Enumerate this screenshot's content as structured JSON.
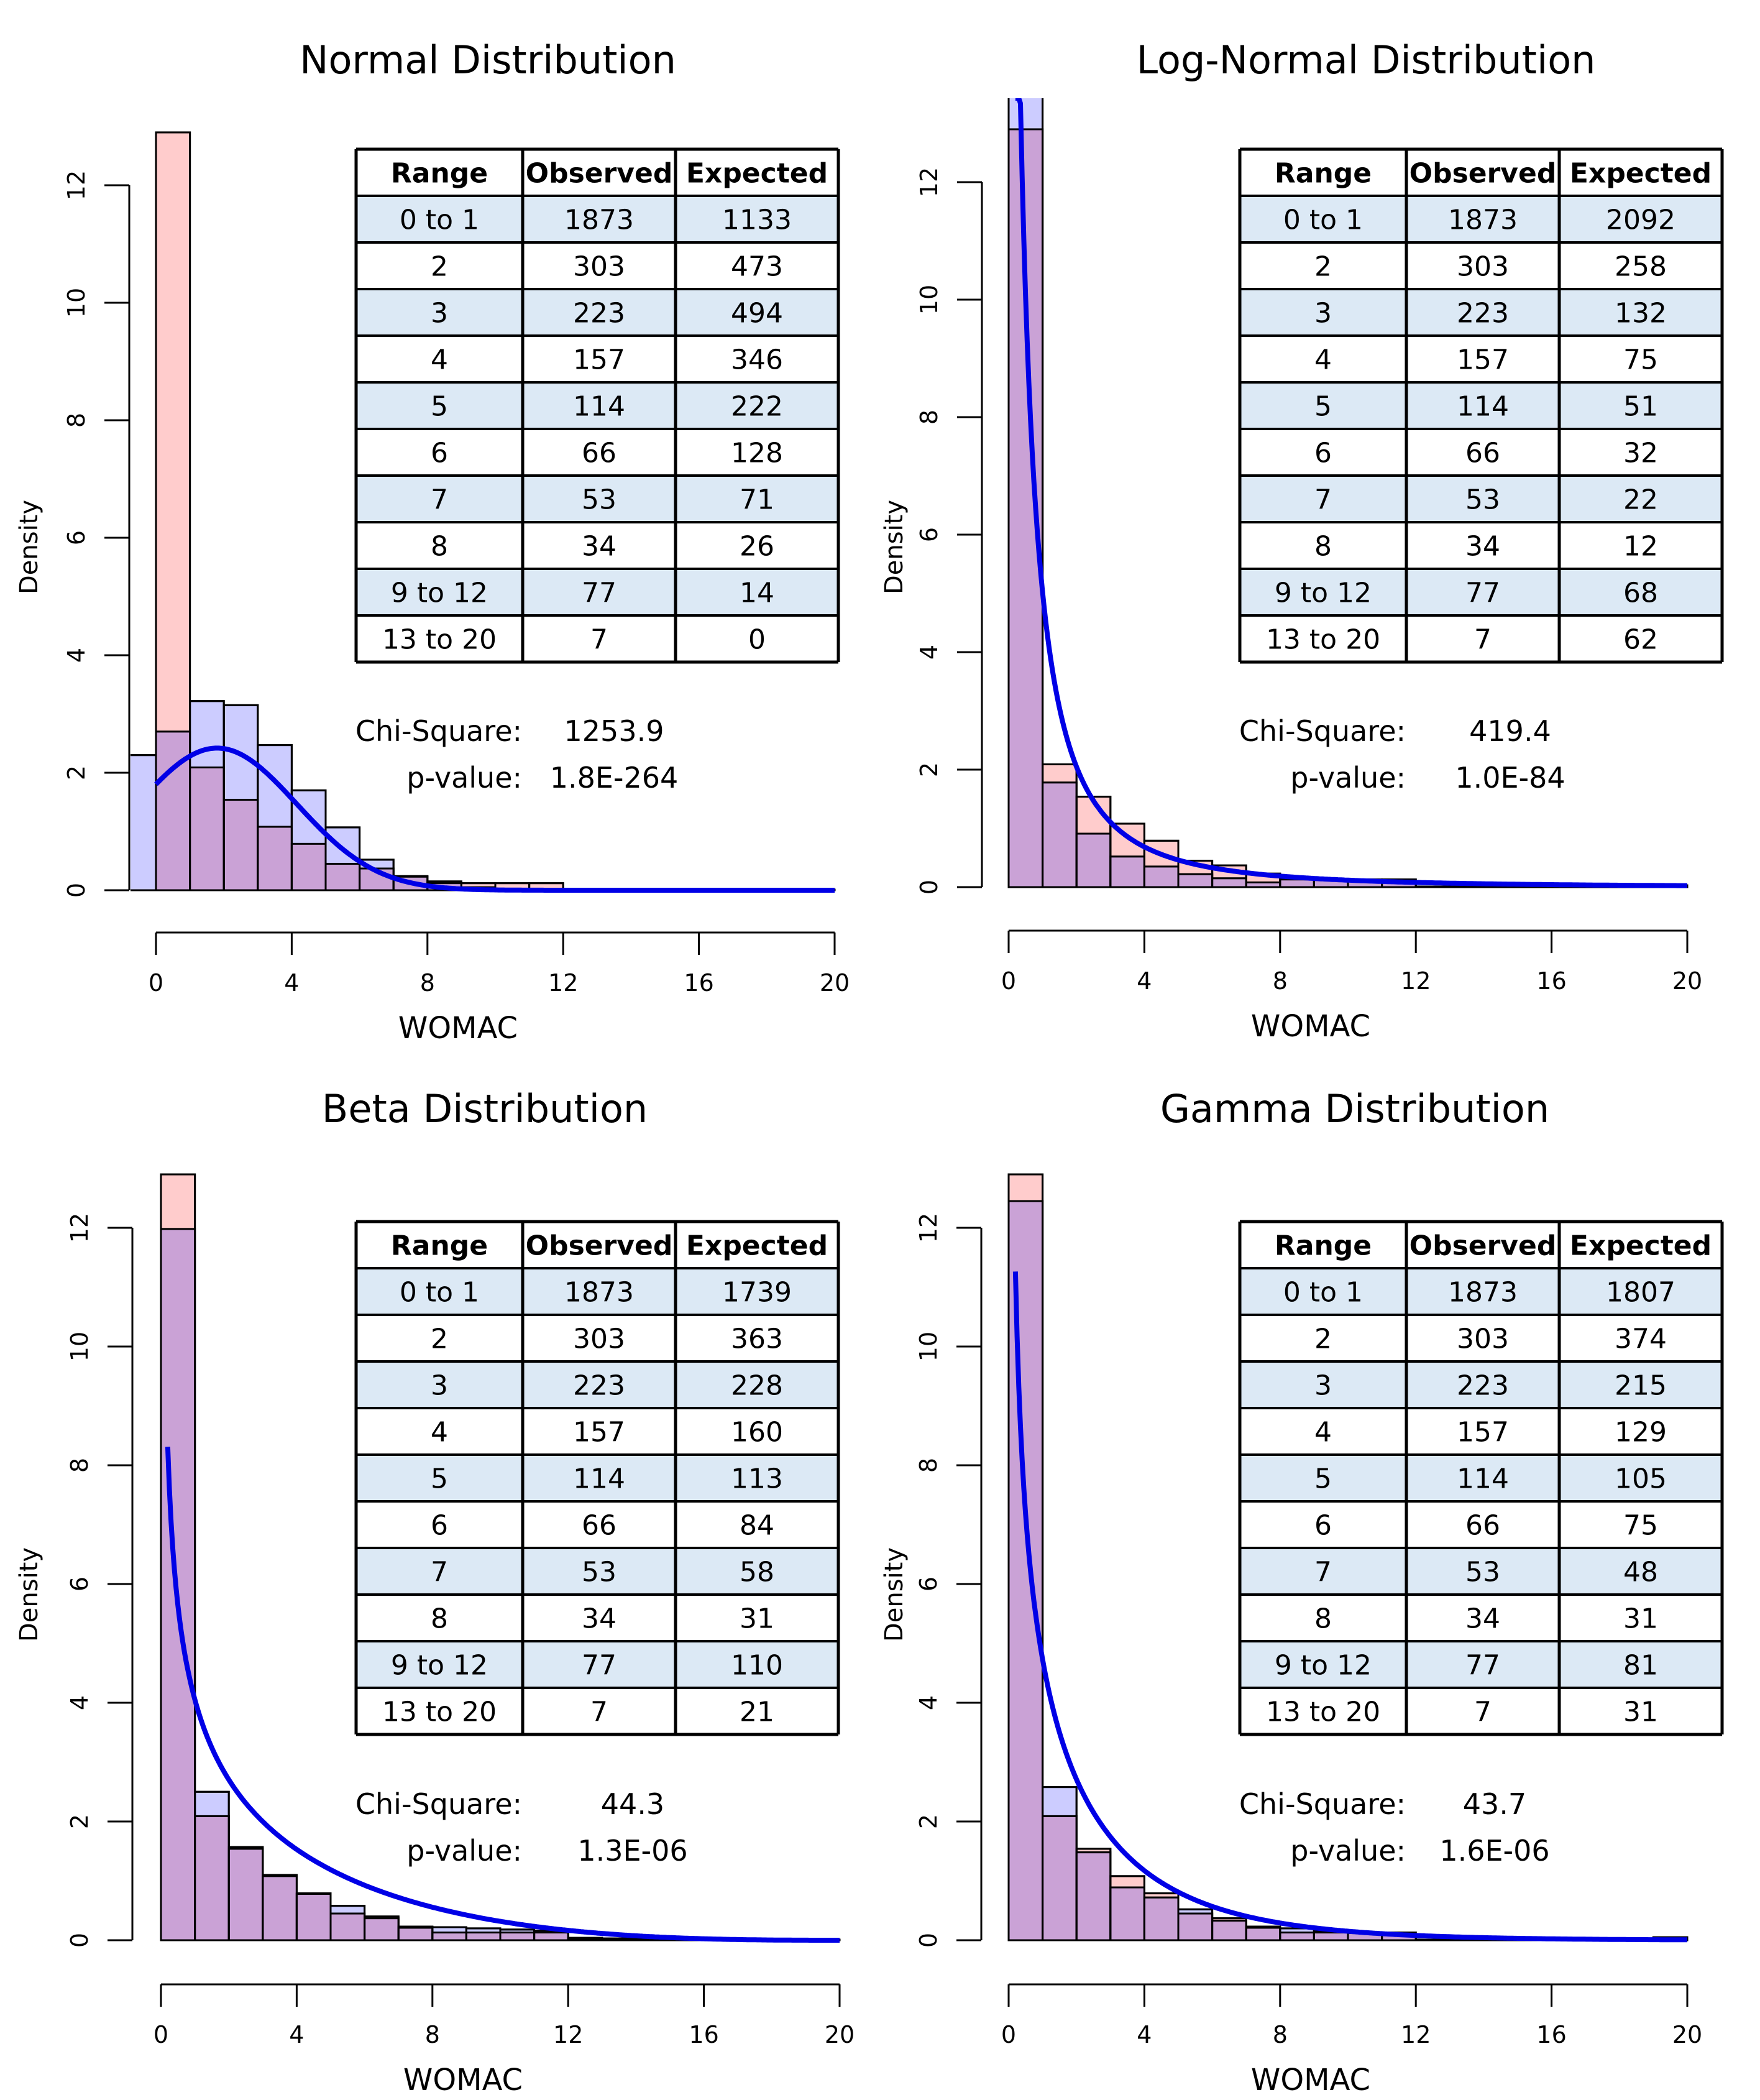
{
  "chart_data": [
    {
      "type": "bar",
      "panel": "normal",
      "title": "Normal Distribution",
      "xlabel": "WOMAC",
      "ylabel": "Density",
      "xlim": [
        0,
        20
      ],
      "ylim": [
        0,
        13
      ],
      "xticks": [
        "0",
        "4",
        "8",
        "12",
        "16",
        "20"
      ],
      "yticks": [
        "0",
        "2",
        "4",
        "6",
        "8",
        "10",
        "12"
      ],
      "legend": "none",
      "series": [
        {
          "name": "Observed",
          "bin_start": 0,
          "bin_width": 1,
          "values": [
            12.9,
            2.09,
            1.54,
            1.08,
            0.79,
            0.45,
            0.37,
            0.23,
            0.15,
            0.12,
            0.12,
            0.12,
            0.01,
            0.01,
            0.01,
            0.01,
            0.01,
            0.01,
            0.01,
            0.01
          ]
        },
        {
          "name": "Expected",
          "bin_start": -1,
          "bin_width": 1,
          "values": [
            2.3,
            2.7,
            3.22,
            3.15,
            2.47,
            1.7,
            1.07,
            0.52,
            0.24,
            0.12,
            0.05,
            0.02,
            0.0
          ]
        }
      ],
      "curve": {
        "name": "Fitted density",
        "dist": "normal",
        "mean": 1.8,
        "sd": 2.35,
        "scale": 19.0
      },
      "table": {
        "headers": [
          "Range",
          "Observed",
          "Expected"
        ],
        "rows": [
          [
            "0  to 1",
            "1873",
            "1133"
          ],
          [
            "2",
            "303",
            "473"
          ],
          [
            "3",
            "223",
            "494"
          ],
          [
            "4",
            "157",
            "346"
          ],
          [
            "5",
            "114",
            "222"
          ],
          [
            "6",
            "66",
            "128"
          ],
          [
            "7",
            "53",
            "71"
          ],
          [
            "8",
            "34",
            "26"
          ],
          [
            "9 to 12",
            "77",
            "14"
          ],
          [
            "13 to 20",
            "7",
            "0"
          ]
        ]
      },
      "stats": {
        "chi_label": "Chi-Square:",
        "chi_value": "1253.9",
        "p_label": "p-value:",
        "p_value": "1.8E-264"
      }
    },
    {
      "type": "bar",
      "panel": "lognormal",
      "title": "Log-Normal Distribution",
      "xlabel": "WOMAC",
      "ylabel": "Density",
      "xlim": [
        0,
        20
      ],
      "ylim": [
        0,
        13.5
      ],
      "xticks": [
        "0",
        "4",
        "8",
        "12",
        "16",
        "20"
      ],
      "yticks": [
        "0",
        "2",
        "4",
        "6",
        "8",
        "10",
        "12"
      ],
      "legend": "none",
      "series": [
        {
          "name": "Observed",
          "bin_start": 0,
          "bin_width": 1,
          "values": [
            12.9,
            2.09,
            1.54,
            1.08,
            0.79,
            0.45,
            0.37,
            0.23,
            0.13,
            0.13,
            0.13,
            0.13,
            0.01,
            0.01,
            0.01,
            0.01,
            0.01,
            0.01,
            0.01,
            0.01
          ]
        },
        {
          "name": "Expected",
          "bin_start": 0,
          "bin_width": 1,
          "values": [
            14.4,
            1.78,
            0.91,
            0.52,
            0.35,
            0.22,
            0.15,
            0.08,
            0.14,
            0.12,
            0.1,
            0.09,
            0.07,
            0.06,
            0.05,
            0.05,
            0.04,
            0.04,
            0.03,
            0.03
          ]
        }
      ],
      "curve": {
        "name": "Fitted density",
        "dist": "lognormal",
        "meanlog": -0.55,
        "sdlog": 1.55,
        "scale": 20.0
      },
      "table": {
        "headers": [
          "Range",
          "Observed",
          "Expected"
        ],
        "rows": [
          [
            "0  to 1",
            "1873",
            "2092"
          ],
          [
            "2",
            "303",
            "258"
          ],
          [
            "3",
            "223",
            "132"
          ],
          [
            "4",
            "157",
            "75"
          ],
          [
            "5",
            "114",
            "51"
          ],
          [
            "6",
            "66",
            "32"
          ],
          [
            "7",
            "53",
            "22"
          ],
          [
            "8",
            "34",
            "12"
          ],
          [
            "9 to 12",
            "77",
            "68"
          ],
          [
            "13 to 20",
            "7",
            "62"
          ]
        ]
      },
      "stats": {
        "chi_label": "Chi-Square:",
        "chi_value": "419.4",
        "p_label": "p-value:",
        "p_value": "1.0E-84"
      }
    },
    {
      "type": "bar",
      "panel": "beta",
      "title": "Beta Distribution",
      "xlabel": "WOMAC",
      "ylabel": "Density",
      "xlim": [
        0,
        20
      ],
      "ylim": [
        0,
        13.5
      ],
      "xticks": [
        "0",
        "4",
        "8",
        "12",
        "16",
        "20"
      ],
      "yticks": [
        "0",
        "2",
        "4",
        "6",
        "8",
        "10",
        "12"
      ],
      "legend": "none",
      "series": [
        {
          "name": "Observed",
          "bin_start": 0,
          "bin_width": 1,
          "values": [
            12.9,
            2.09,
            1.54,
            1.08,
            0.79,
            0.45,
            0.37,
            0.23,
            0.13,
            0.13,
            0.13,
            0.13,
            0.01,
            0.01,
            0.01,
            0.01,
            0.01,
            0.01,
            0.01,
            0.01
          ]
        },
        {
          "name": "Expected",
          "bin_start": 0,
          "bin_width": 1,
          "values": [
            11.98,
            2.5,
            1.57,
            1.1,
            0.78,
            0.58,
            0.4,
            0.21,
            0.22,
            0.2,
            0.18,
            0.16,
            0.04,
            0.03,
            0.02,
            0.02,
            0.01,
            0.01,
            0.01,
            0.0
          ]
        }
      ],
      "curve": {
        "name": "Fitted density",
        "dist": "beta",
        "alpha": 0.62,
        "beta": 3.6,
        "scale": 20.0
      },
      "table": {
        "headers": [
          "Range",
          "Observed",
          "Expected"
        ],
        "rows": [
          [
            "0  to 1",
            "1873",
            "1739"
          ],
          [
            "2",
            "303",
            "363"
          ],
          [
            "3",
            "223",
            "228"
          ],
          [
            "4",
            "157",
            "160"
          ],
          [
            "5",
            "114",
            "113"
          ],
          [
            "6",
            "66",
            "84"
          ],
          [
            "7",
            "53",
            "58"
          ],
          [
            "8",
            "34",
            "31"
          ],
          [
            "9 to 12",
            "77",
            "110"
          ],
          [
            "13 to 20",
            "7",
            "21"
          ]
        ]
      },
      "stats": {
        "chi_label": "Chi-Square:",
        "chi_value": "44.3",
        "p_label": "p-value:",
        "p_value": "1.3E-06"
      }
    },
    {
      "type": "bar",
      "panel": "gamma",
      "title": "Gamma Distribution",
      "xlabel": "WOMAC",
      "ylabel": "Density",
      "xlim": [
        0,
        20
      ],
      "ylim": [
        0,
        13.5
      ],
      "xticks": [
        "0",
        "4",
        "8",
        "12",
        "16",
        "20"
      ],
      "yticks": [
        "0",
        "2",
        "4",
        "6",
        "8",
        "10",
        "12"
      ],
      "legend": "none",
      "series": [
        {
          "name": "Observed",
          "bin_start": 0,
          "bin_width": 1,
          "values": [
            12.9,
            2.09,
            1.54,
            1.08,
            0.79,
            0.45,
            0.37,
            0.23,
            0.13,
            0.13,
            0.13,
            0.13,
            0.01,
            0.01,
            0.01,
            0.01,
            0.01,
            0.01,
            0.01,
            0.05
          ]
        },
        {
          "name": "Expected",
          "bin_start": 0,
          "bin_width": 1,
          "values": [
            12.45,
            2.58,
            1.48,
            0.89,
            0.72,
            0.52,
            0.33,
            0.21,
            0.2,
            0.15,
            0.12,
            0.09,
            0.05,
            0.04,
            0.03,
            0.02,
            0.02,
            0.01,
            0.01,
            0.01
          ]
        }
      ],
      "curve": {
        "name": "Fitted density",
        "dist": "gamma",
        "shape": 0.6,
        "rate": 0.28,
        "scale": 20.0
      },
      "table": {
        "headers": [
          "Range",
          "Observed",
          "Expected"
        ],
        "rows": [
          [
            "0  to 1",
            "1873",
            "1807"
          ],
          [
            "2",
            "303",
            "374"
          ],
          [
            "3",
            "223",
            "215"
          ],
          [
            "4",
            "157",
            "129"
          ],
          [
            "5",
            "114",
            "105"
          ],
          [
            "6",
            "66",
            "75"
          ],
          [
            "7",
            "53",
            "48"
          ],
          [
            "8",
            "34",
            "31"
          ],
          [
            "9 to 12",
            "77",
            "81"
          ],
          [
            "13 to 20",
            "7",
            "31"
          ]
        ]
      },
      "stats": {
        "chi_label": "Chi-Square:",
        "chi_value": "43.7",
        "p_label": "p-value:",
        "p_value": "1.6E-06"
      }
    }
  ],
  "colors": {
    "observed": "#FFCCCC",
    "expected": "#CCCCFF",
    "overlap": "#CAA2D6",
    "curve": "#0000E6",
    "table_stripe": "#DCE9F5"
  }
}
